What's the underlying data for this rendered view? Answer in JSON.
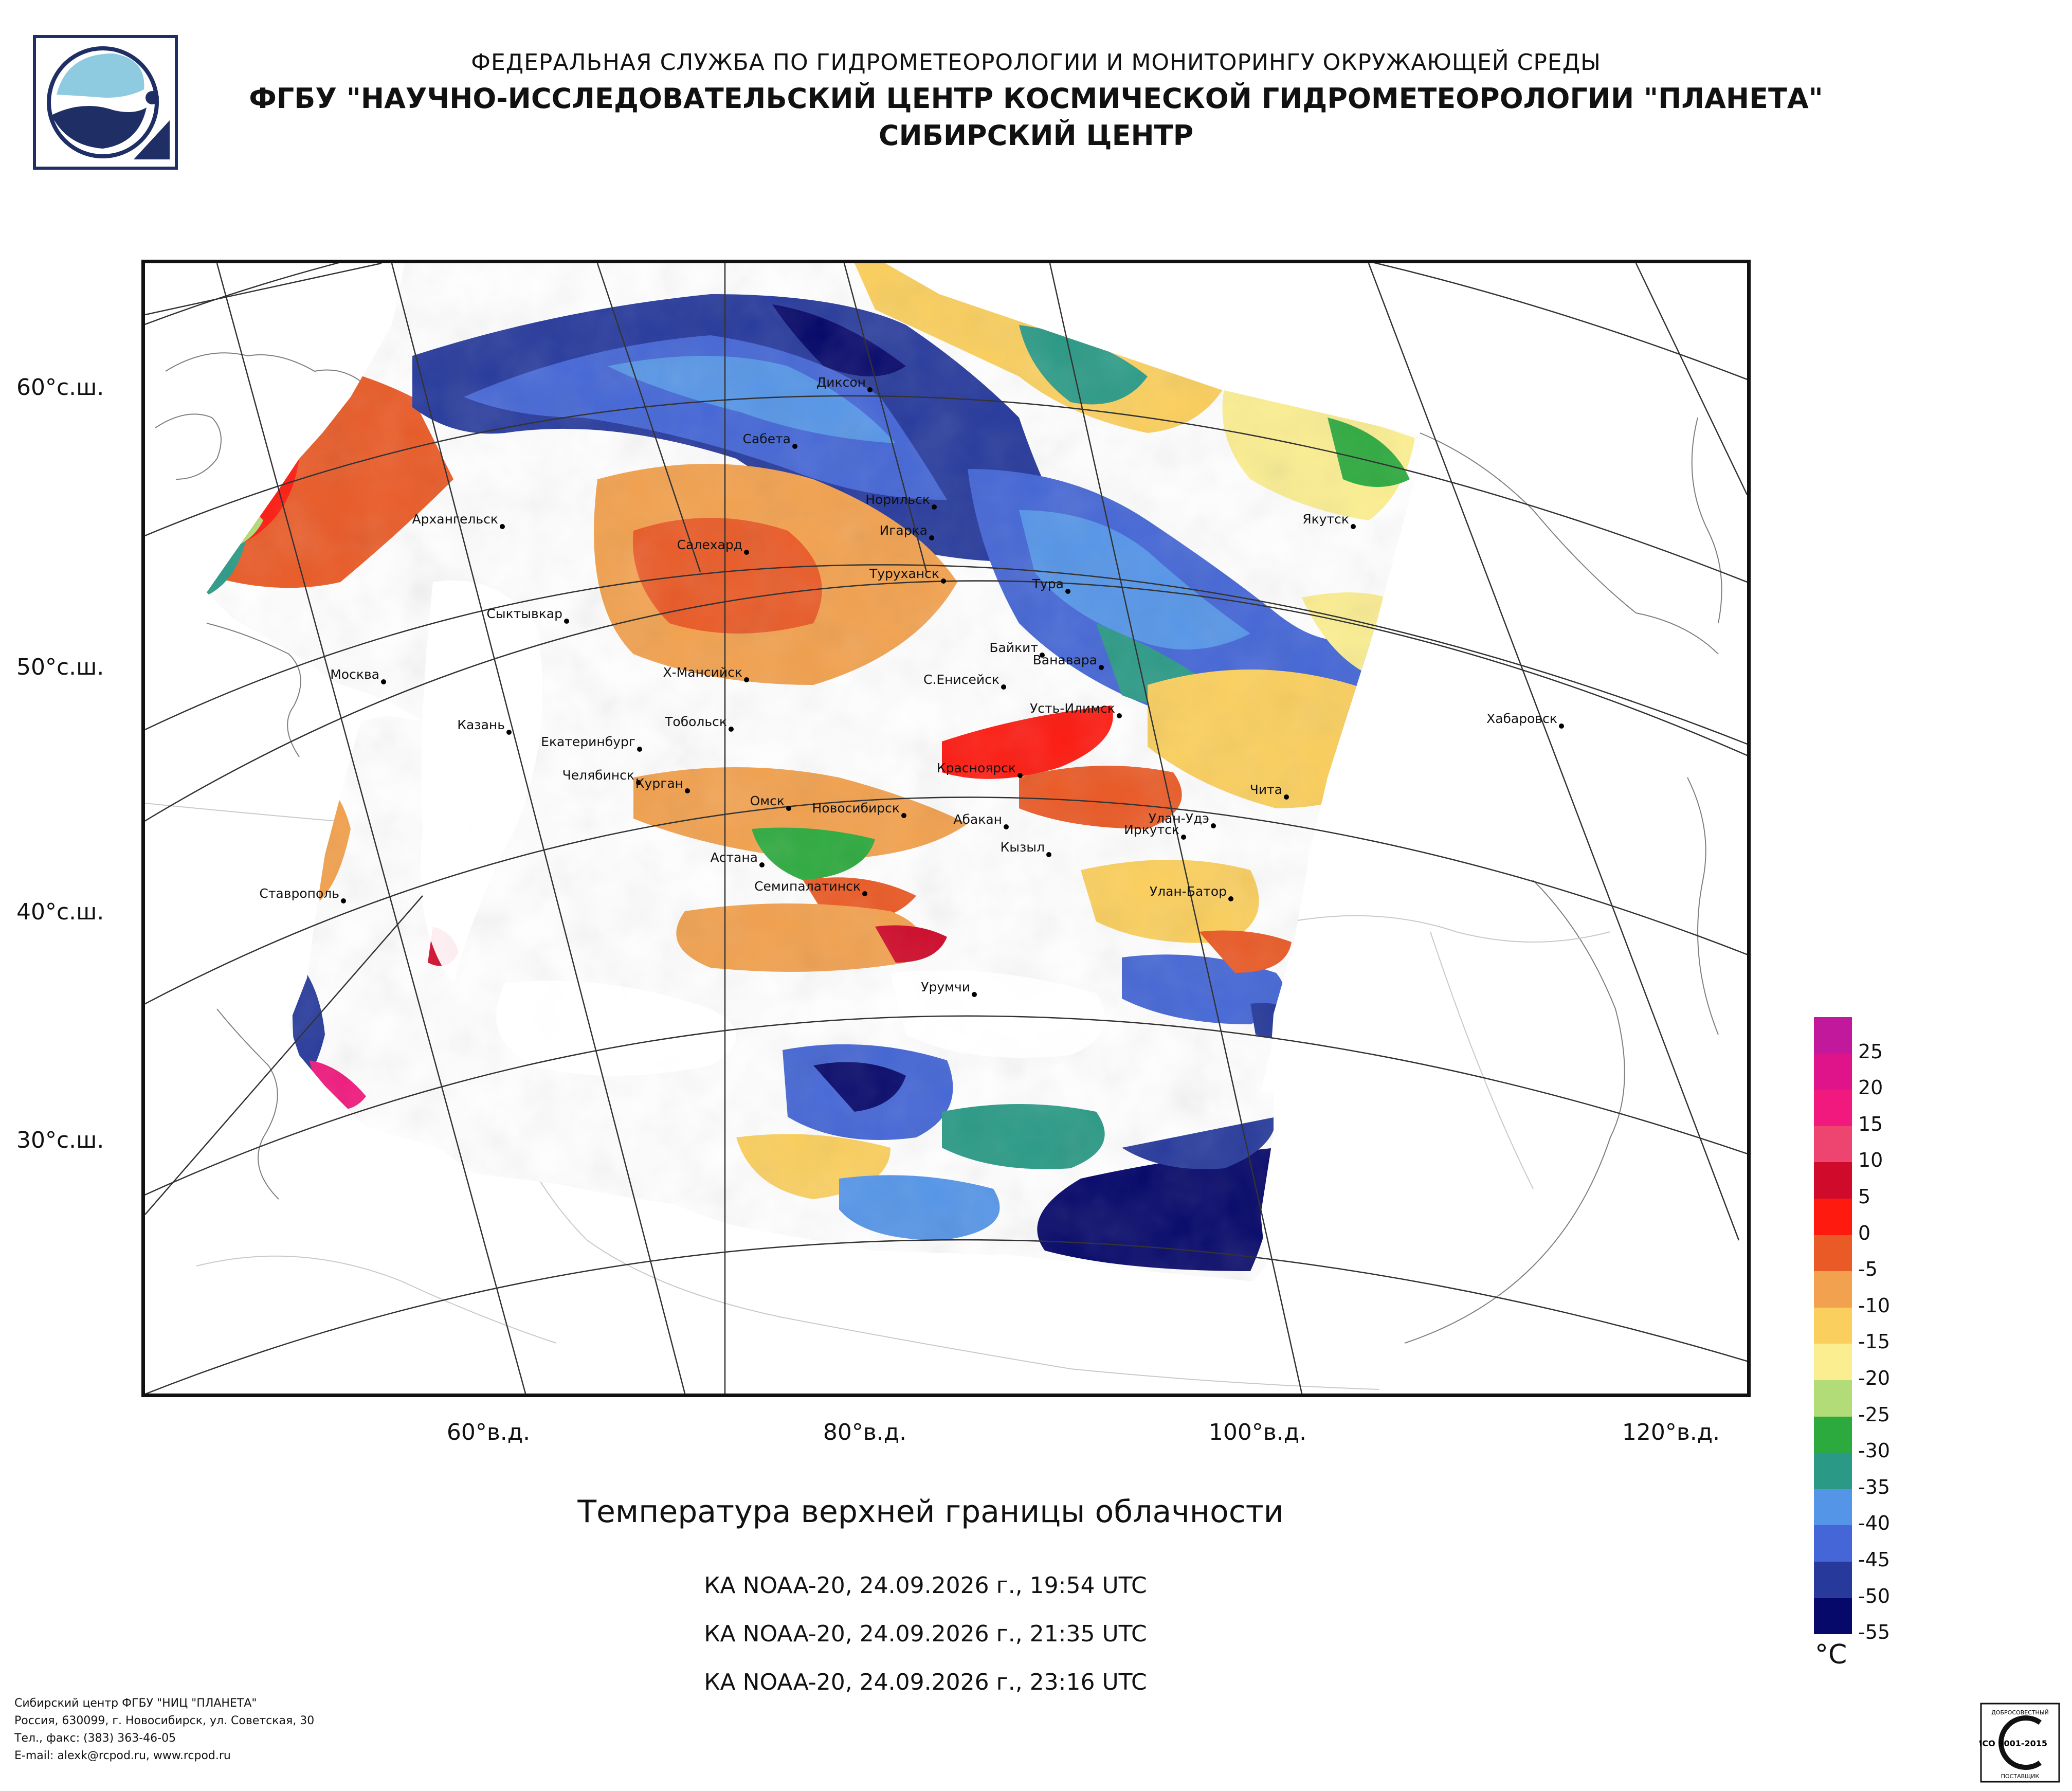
{
  "header": {
    "line1": "ФЕДЕРАЛЬНАЯ СЛУЖБА ПО ГИДРОМЕТЕОРОЛОГИИ И МОНИТОРИНГУ ОКРУЖАЮЩЕЙ СРЕДЫ",
    "line2": "ФГБУ \"НАУЧНО-ИССЛЕДОВАТЕЛЬСКИЙ ЦЕНТР КОСМИЧЕСКОЙ ГИДРОМЕТЕОРОЛОГИИ \"ПЛАНЕТА\"",
    "line3": "СИБИРСКИЙ ЦЕНТР"
  },
  "logo": {
    "icon": "planeta-logo-icon",
    "colors": {
      "sky": "#8fcbe0",
      "dark": "#1f2f66"
    }
  },
  "map": {
    "lat_labels": [
      "60°с.ш.",
      "50°с.ш.",
      "40°с.ш.",
      "30°с.ш."
    ],
    "lon_labels": [
      "60°в.д.",
      "80°в.д.",
      "100°в.д.",
      "120°в.д."
    ],
    "cities": [
      {
        "name": "Диксон"
      },
      {
        "name": "Сабета"
      },
      {
        "name": "Норильск"
      },
      {
        "name": "Игарка"
      },
      {
        "name": "Архангельск"
      },
      {
        "name": "Салехард"
      },
      {
        "name": "Туруханск"
      },
      {
        "name": "Тура"
      },
      {
        "name": "Якутск"
      },
      {
        "name": "Сыктывкар"
      },
      {
        "name": "Байкит"
      },
      {
        "name": "Ванавара"
      },
      {
        "name": "Москва"
      },
      {
        "name": "Х-Мансийск"
      },
      {
        "name": "С.Енисейск"
      },
      {
        "name": "Усть-Илимск"
      },
      {
        "name": "Хабаровск"
      },
      {
        "name": "Казань"
      },
      {
        "name": "Тобольск"
      },
      {
        "name": "Екатеринбург"
      },
      {
        "name": "Красноярск"
      },
      {
        "name": "Челябинск"
      },
      {
        "name": "Курган"
      },
      {
        "name": "Чита"
      },
      {
        "name": "Омск"
      },
      {
        "name": "Новосибирск"
      },
      {
        "name": "Абакан"
      },
      {
        "name": "Улан-Удэ"
      },
      {
        "name": "Иркутск"
      },
      {
        "name": "Кызыл"
      },
      {
        "name": "Астана"
      },
      {
        "name": "Ставрополь"
      },
      {
        "name": "Семипалатинск"
      },
      {
        "name": "Улан-Батор"
      },
      {
        "name": "Урумчи"
      }
    ]
  },
  "caption": {
    "title": "Температура верхней границы облачности",
    "passes": [
      "КА NOAA-20, 24.09.2026 г., 19:54 UTC",
      "КА NOAA-20, 24.09.2026 г., 21:35 UTC",
      "КА NOAA-20, 24.09.2026 г., 23:16 UTC"
    ]
  },
  "legend": {
    "unit": "°C",
    "labels": [
      "25",
      "20",
      "15",
      "10",
      "5",
      "0",
      "-5",
      "-10",
      "-15",
      "-20",
      "-25",
      "-30",
      "-35",
      "-40",
      "-45",
      "-50",
      "-55"
    ],
    "colors": [
      "#c2189b",
      "#e0148a",
      "#f2197e",
      "#ee4570",
      "#cf0a2a",
      "#ff1a10",
      "#ea5a26",
      "#f2a14e",
      "#fbcf5d",
      "#fbee91",
      "#b1dc78",
      "#2daa3e",
      "#2a9a86",
      "#5595e8",
      "#4466d6",
      "#273a9c",
      "#06086a"
    ]
  },
  "footer": {
    "line1": "Сибирский центр ФГБУ \"НИЦ \"ПЛАНЕТА\"",
    "line2": "Россия, 630099, г. Новосибирск, ул. Советская, 30",
    "line3": "Тел., факс: (383) 363-46-05",
    "line4": "E-mail: alexk@rcpod.ru, www.rcpod.ru"
  },
  "certificate": {
    "icon": "iso-certificate-icon",
    "top_text": "ДОБРОСОВЕСТНЫЙ",
    "middle_text": "ИСО 9001-2015",
    "bottom_text": "ПОСТАВЩИК"
  }
}
